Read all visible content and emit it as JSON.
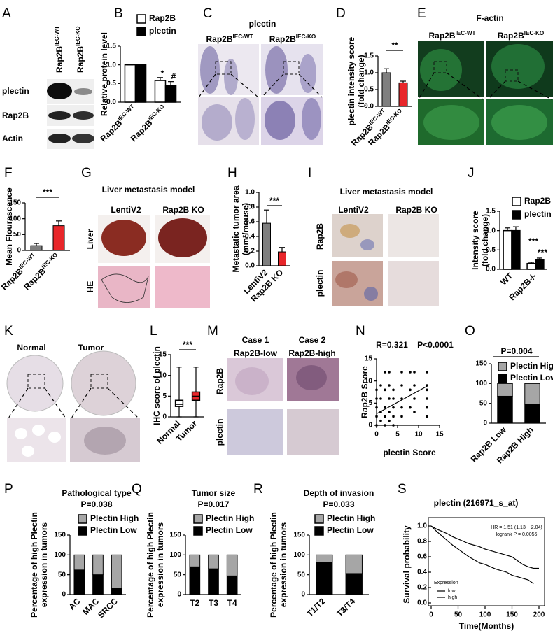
{
  "panels": [
    {
      "label": "A",
      "columns": [
        {
          "base": "Rap2B",
          "sup": "IEC-WT"
        },
        {
          "base": "Rap2B",
          "sup": "IEC-KO"
        }
      ],
      "rows": [
        "plectin",
        "Rap2B",
        "Actin"
      ]
    },
    {
      "label": "B",
      "chart_data": {
        "type": "grouped_bar",
        "ylabel": "Relative protein level",
        "categories": [
          {
            "base": "Rap2B",
            "sup": "IEC-WT"
          },
          {
            "base": "Rap2B",
            "sup": "IEC-KO"
          }
        ],
        "series": [
          {
            "name": "Rap2B",
            "color": "#ffffff",
            "values": [
              1.0,
              0.58
            ],
            "errors": [
              0,
              0.08
            ]
          },
          {
            "name": "plectin",
            "color": "#000000",
            "values": [
              1.0,
              0.45
            ],
            "errors": [
              0,
              0.1
            ]
          }
        ],
        "ylim": [
          0,
          1.5
        ],
        "yticks": [
          {
            "value": 0,
            "label": "0.0"
          },
          0.5,
          {
            "value": 1,
            "label": "1.0"
          },
          1.5
        ],
        "annotations": [
          "*",
          "#"
        ]
      }
    },
    {
      "label": "C",
      "title": "plectin",
      "columns": [
        {
          "base": "Rap2B",
          "sup": "IEC-WT"
        },
        {
          "base": "Rap2B",
          "sup": "IEC-KO"
        }
      ]
    },
    {
      "label": "D",
      "chart_data": {
        "type": "bar",
        "ylabel": [
          "plectin intensity score",
          "(fold change)"
        ],
        "categories": [
          {
            "base": "Rap2B",
            "sup": "IEC-WT"
          },
          {
            "base": "Rap2B",
            "sup": "IEC-KO"
          }
        ],
        "values": [
          1.0,
          0.7
        ],
        "errors": [
          0.12,
          0.05
        ],
        "colors": [
          "#7f7f7f",
          "#e8262a"
        ],
        "ylim": [
          0,
          1.5
        ],
        "yticks": [
          {
            "value": 0,
            "label": "0.0"
          },
          0.5,
          {
            "value": 1,
            "label": "1.0"
          },
          1.5
        ],
        "significance": "**"
      }
    },
    {
      "label": "E",
      "title": "F-actin",
      "columns": [
        {
          "base": "Rap2B",
          "sup": "IEC-WT"
        },
        {
          "base": "Rap2B",
          "sup": "IEC-KO"
        }
      ]
    },
    {
      "label": "F",
      "chart_data": {
        "type": "bar",
        "ylabel": "Mean Flourescence",
        "categories": [
          {
            "base": "Rap2B",
            "sup": "IEC-WT"
          },
          {
            "base": "Rap2B",
            "sup": "IEC-KO"
          }
        ],
        "values": [
          15,
          78
        ],
        "errors": [
          7,
          15
        ],
        "colors": [
          "#7f7f7f",
          "#e8262a"
        ],
        "ylim": [
          0,
          150
        ],
        "yticks": [
          0,
          50,
          100,
          150
        ],
        "significance": "***"
      }
    },
    {
      "label": "G",
      "title": "Liver metastasis model",
      "columns": [
        "LentiV2",
        "Rap2B KO"
      ],
      "rows": [
        "Liver",
        "HE"
      ]
    },
    {
      "label": "H",
      "chart_data": {
        "type": "bar",
        "ylabel": [
          "Metastatic tumor area",
          "(mm²/mouse)"
        ],
        "categories": [
          "LentiV2",
          "Rap2B KO"
        ],
        "values": [
          0.58,
          0.19
        ],
        "errors": [
          0.18,
          0.06
        ],
        "colors": [
          "#7f7f7f",
          "#e8262a"
        ],
        "ylim": [
          0,
          1
        ],
        "yticks": [
          {
            "value": 0,
            "label": "0.0"
          },
          0.2,
          0.4,
          0.6,
          0.8,
          {
            "value": 1,
            "label": "1.0"
          }
        ],
        "significance": "***"
      }
    },
    {
      "label": "I",
      "title": "Liver metastasis model",
      "columns": [
        "LentiV2",
        "Rap2B KO"
      ],
      "rows": [
        "Rap2B",
        "plectin"
      ]
    },
    {
      "label": "J",
      "chart_data": {
        "type": "grouped_bar",
        "ylabel": [
          "Intensity score",
          "(fold change)"
        ],
        "categories": [
          "WT",
          "Rap2B-/-"
        ],
        "series": [
          {
            "name": "Rap2B",
            "color": "#ffffff",
            "values": [
              1.0,
              0.15
            ],
            "errors": [
              0.07,
              0.03
            ]
          },
          {
            "name": "plectin",
            "color": "#000000",
            "values": [
              1.0,
              0.25
            ],
            "errors": [
              0.1,
              0.04
            ]
          }
        ],
        "ylim": [
          0,
          1.5
        ],
        "yticks": [
          {
            "value": 0,
            "label": "0.0"
          },
          0.5,
          {
            "value": 1,
            "label": "1.0"
          },
          1.5
        ],
        "annotations": [
          "***",
          "***"
        ]
      }
    },
    {
      "label": "K",
      "columns": [
        "Normal",
        "Tumor"
      ]
    },
    {
      "label": "L",
      "chart_data": {
        "type": "box",
        "ylabel": "IHC score of plectin",
        "categories": [
          "Normal",
          "Tumor"
        ],
        "boxes": [
          {
            "min": 0,
            "q1": 2.5,
            "median": 3,
            "q3": 4,
            "max": 12
          },
          {
            "min": 0,
            "q1": 4,
            "median": 5,
            "q3": 6,
            "max": 12
          }
        ],
        "colors": [
          "#ffffff",
          "#e8262a"
        ],
        "ylim": [
          0,
          15
        ],
        "yticks": [
          0,
          5,
          10,
          15
        ],
        "significance": "***"
      }
    },
    {
      "label": "M",
      "columns": [
        [
          "Case 1",
          "Rap2B-low"
        ],
        [
          "Case 2",
          "Rap2B-high"
        ]
      ],
      "rows": [
        "Rap2B",
        "plectin"
      ]
    },
    {
      "label": "N",
      "chart_data": {
        "type": "scatter",
        "xlabel": "plectin Score",
        "ylabel": "Rap2B Score",
        "color": "#000000",
        "x": [
          0,
          0,
          0,
          0,
          0,
          1,
          1,
          1,
          1,
          2,
          2,
          2,
          2,
          2,
          3,
          3,
          3,
          3,
          3,
          4,
          4,
          4,
          4,
          4,
          6,
          6,
          6,
          6,
          6,
          8,
          8,
          8,
          9,
          9,
          9,
          9,
          12,
          12,
          12,
          12,
          12,
          12
        ],
        "y": [
          0,
          2,
          4,
          6,
          8,
          1,
          3,
          6,
          9,
          0,
          2,
          4,
          8,
          12,
          1,
          3,
          6,
          9,
          12,
          0,
          2,
          4,
          6,
          8,
          2,
          4,
          6,
          9,
          12,
          4,
          8,
          12,
          3,
          6,
          9,
          12,
          2,
          4,
          6,
          8,
          9,
          12
        ],
        "fit": {
          "x": [
            0,
            12
          ],
          "y": [
            2.6,
            8.8
          ]
        },
        "xlim": [
          0,
          15
        ],
        "ylim": [
          0,
          15
        ],
        "xticks": [
          0,
          5,
          10,
          15
        ],
        "yticks": [
          0,
          5,
          10,
          15
        ],
        "annotations": [
          "R=0.321",
          "P<0.0001"
        ]
      }
    },
    {
      "label": "O",
      "chart_data": {
        "type": "stacked_bar",
        "categories": [
          "Rap2B Low",
          "Rap2B High"
        ],
        "series": [
          {
            "name": "Plectin High",
            "color": "#a6a6a6",
            "values": [
              32,
              52
            ]
          },
          {
            "name": "Plectin Low",
            "color": "#000000",
            "values": [
              68,
              48
            ]
          }
        ],
        "ylim": [
          0,
          150
        ],
        "yticks": [
          0,
          50,
          100,
          150
        ],
        "annotations": [
          "P=0.004"
        ]
      }
    },
    {
      "label": "P",
      "chart_data": {
        "type": "stacked_bar",
        "title": "Pathological type",
        "ylabel": [
          "Percentage of high Plectin",
          "expression in tumors"
        ],
        "categories": [
          "AC",
          "MAC",
          "SRCC"
        ],
        "series": [
          {
            "name": "Plectin High",
            "color": "#a6a6a6",
            "values": [
              38,
              50,
              85
            ]
          },
          {
            "name": "Plectin Low",
            "color": "#000000",
            "values": [
              62,
              50,
              15
            ]
          }
        ],
        "ylim": [
          0,
          150
        ],
        "yticks": [
          0,
          50,
          100,
          150
        ],
        "annotations": [
          "P=0.038"
        ]
      }
    },
    {
      "label": "Q",
      "chart_data": {
        "type": "stacked_bar",
        "title": "Tumor size",
        "ylabel": [
          "Percentage of high Plectin",
          "expression in tumors"
        ],
        "categories": [
          "T2",
          "T3",
          "T4"
        ],
        "series": [
          {
            "name": "Plectin High",
            "color": "#a6a6a6",
            "values": [
              30,
              35,
              53
            ]
          },
          {
            "name": "Plectin Low",
            "color": "#000000",
            "values": [
              70,
              65,
              47
            ]
          }
        ],
        "ylim": [
          0,
          150
        ],
        "yticks": [
          0,
          50,
          100,
          150
        ],
        "annotations": [
          "P=0.017"
        ]
      }
    },
    {
      "label": "R",
      "chart_data": {
        "type": "stacked_bar",
        "title": "Depth of invasion",
        "ylabel": [
          "Percentage of high Plectin",
          "expression in tumors"
        ],
        "categories": [
          "T1/T2",
          "T3/T4"
        ],
        "series": [
          {
            "name": "Plectin High",
            "color": "#a6a6a6",
            "values": [
              18,
              47
            ]
          },
          {
            "name": "Plectin Low",
            "color": "#000000",
            "values": [
              82,
              53
            ]
          }
        ],
        "ylim": [
          0,
          150
        ],
        "yticks": [
          0,
          50,
          100,
          150
        ],
        "annotations": [
          "P=0.033"
        ]
      }
    },
    {
      "label": "S",
      "chart_data": {
        "type": "line",
        "title": "plectin (216971_s_at)",
        "xlabel": "Time(Months)",
        "ylabel": "Survival probability",
        "xlim": [
          0,
          200
        ],
        "xticks": [
          0,
          50,
          100,
          150,
          200
        ],
        "ylim": [
          0,
          1
        ],
        "yticks": [
          {
            "value": 0,
            "label": "0.0"
          },
          0.2,
          0.4,
          0.6,
          0.8,
          {
            "value": 1,
            "label": "1.0"
          }
        ],
        "legend_title": "Expression",
        "series": [
          {
            "name": "low",
            "color": "#000000",
            "x": [
              0,
              10,
              20,
              30,
              40,
              50,
              60,
              70,
              80,
              90,
              100,
              110,
              120,
              130,
              140,
              150,
              160,
              170,
              180,
              190,
              200
            ],
            "values": [
              1.0,
              0.96,
              0.93,
              0.9,
              0.86,
              0.83,
              0.8,
              0.77,
              0.75,
              0.73,
              0.7,
              0.68,
              0.66,
              0.64,
              0.62,
              0.6,
              0.55,
              0.5,
              0.47,
              0.45,
              0.45
            ]
          },
          {
            "name": "high",
            "color": "#e0607a",
            "x": [
              0,
              10,
              20,
              30,
              40,
              50,
              60,
              70,
              80,
              90,
              100,
              110,
              120,
              130,
              140,
              150,
              160,
              170,
              180,
              190
            ],
            "values": [
              1.0,
              0.93,
              0.87,
              0.81,
              0.75,
              0.7,
              0.65,
              0.6,
              0.56,
              0.52,
              0.5,
              0.47,
              0.44,
              0.42,
              0.4,
              0.36,
              0.34,
              0.32,
              0.3,
              0.25
            ]
          }
        ],
        "annotations": [
          "HR = 1.51 (1.13 − 2.04)",
          "logrank P = 0.0056"
        ]
      }
    }
  ]
}
